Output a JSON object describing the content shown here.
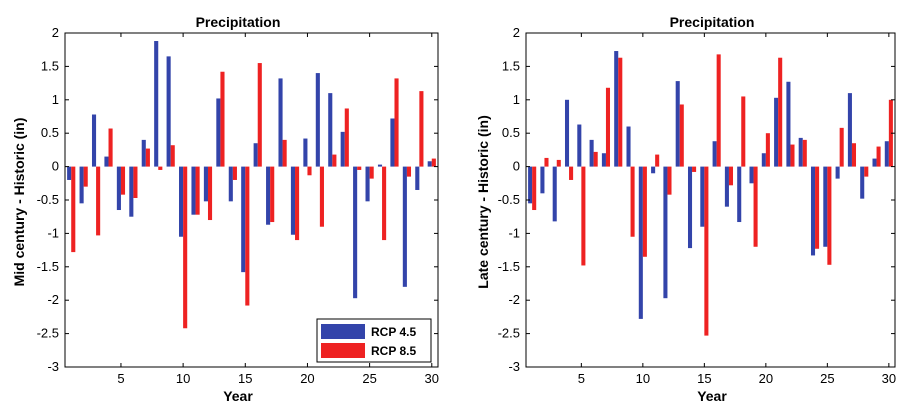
{
  "colors": {
    "rcp45": "#3344aa",
    "rcp85": "#ee2222"
  },
  "chart_data": [
    {
      "type": "bar",
      "title": "Precipitation",
      "xlabel": "Year",
      "ylabel": "Mid century - Historic (in)",
      "xlim": [
        0.5,
        30.5
      ],
      "ylim": [
        -3,
        2
      ],
      "xticks": [
        5,
        10,
        15,
        20,
        25,
        30
      ],
      "yticks": [
        -3,
        -2.5,
        -2,
        -1.5,
        -1,
        -0.5,
        0,
        0.5,
        1,
        1.5,
        2
      ],
      "legend": {
        "position": "bottom-right"
      },
      "x": [
        1,
        2,
        3,
        4,
        5,
        6,
        7,
        8,
        9,
        10,
        11,
        12,
        13,
        14,
        15,
        16,
        17,
        18,
        19,
        20,
        21,
        22,
        23,
        24,
        25,
        26,
        27,
        28,
        29,
        30
      ],
      "series": [
        {
          "name": "RCP 4.5",
          "color": "#3344aa",
          "values": [
            -0.2,
            -0.55,
            0.78,
            0.15,
            -0.65,
            -0.75,
            0.4,
            1.88,
            1.65,
            -1.05,
            -0.72,
            -0.52,
            1.02,
            -0.52,
            -1.58,
            0.35,
            -0.87,
            1.32,
            -1.02,
            0.42,
            1.4,
            1.1,
            0.52,
            -1.97,
            -0.52,
            0.03,
            0.72,
            -1.8,
            -0.35,
            0.08
          ]
        },
        {
          "name": "RCP 8.5",
          "color": "#ee2222",
          "values": [
            -1.28,
            -0.3,
            -1.03,
            0.57,
            -0.42,
            -0.47,
            0.27,
            -0.05,
            0.32,
            -2.42,
            -0.72,
            -0.8,
            1.42,
            -0.2,
            -2.08,
            1.55,
            -0.83,
            0.4,
            -1.1,
            -0.13,
            -0.9,
            0.18,
            0.87,
            -0.05,
            -0.18,
            -1.1,
            1.32,
            -0.15,
            1.13,
            0.12
          ]
        }
      ]
    },
    {
      "type": "bar",
      "title": "Precipitation",
      "xlabel": "Year",
      "ylabel": "Late century - Historic (in)",
      "xlim": [
        0.5,
        30.5
      ],
      "ylim": [
        -3,
        2
      ],
      "xticks": [
        5,
        10,
        15,
        20,
        25,
        30
      ],
      "yticks": [
        -3,
        -2.5,
        -2,
        -1.5,
        -1,
        -0.5,
        0,
        0.5,
        1,
        1.5,
        2
      ],
      "x": [
        1,
        2,
        3,
        4,
        5,
        6,
        7,
        8,
        9,
        10,
        11,
        12,
        13,
        14,
        15,
        16,
        17,
        18,
        19,
        20,
        21,
        22,
        23,
        24,
        25,
        26,
        27,
        28,
        29,
        30
      ],
      "series": [
        {
          "name": "RCP 4.5",
          "color": "#3344aa",
          "values": [
            -0.55,
            -0.4,
            -0.82,
            1.0,
            0.63,
            0.4,
            0.2,
            1.73,
            0.6,
            -2.28,
            -0.1,
            -1.97,
            1.28,
            -1.22,
            -0.9,
            0.38,
            -0.6,
            -0.83,
            -0.25,
            0.2,
            1.03,
            1.27,
            0.43,
            -1.33,
            -1.2,
            -0.18,
            1.1,
            -0.48,
            0.12,
            0.38
          ]
        },
        {
          "name": "RCP 8.5",
          "color": "#ee2222",
          "values": [
            -0.65,
            0.13,
            0.1,
            -0.2,
            -1.48,
            0.22,
            1.18,
            1.63,
            -1.05,
            -1.35,
            0.18,
            -0.42,
            0.93,
            -0.08,
            -2.53,
            1.68,
            -0.28,
            1.05,
            -1.2,
            0.5,
            1.63,
            0.33,
            0.4,
            -1.23,
            -1.47,
            0.58,
            0.35,
            -0.15,
            0.3,
            1.0
          ]
        }
      ]
    }
  ]
}
